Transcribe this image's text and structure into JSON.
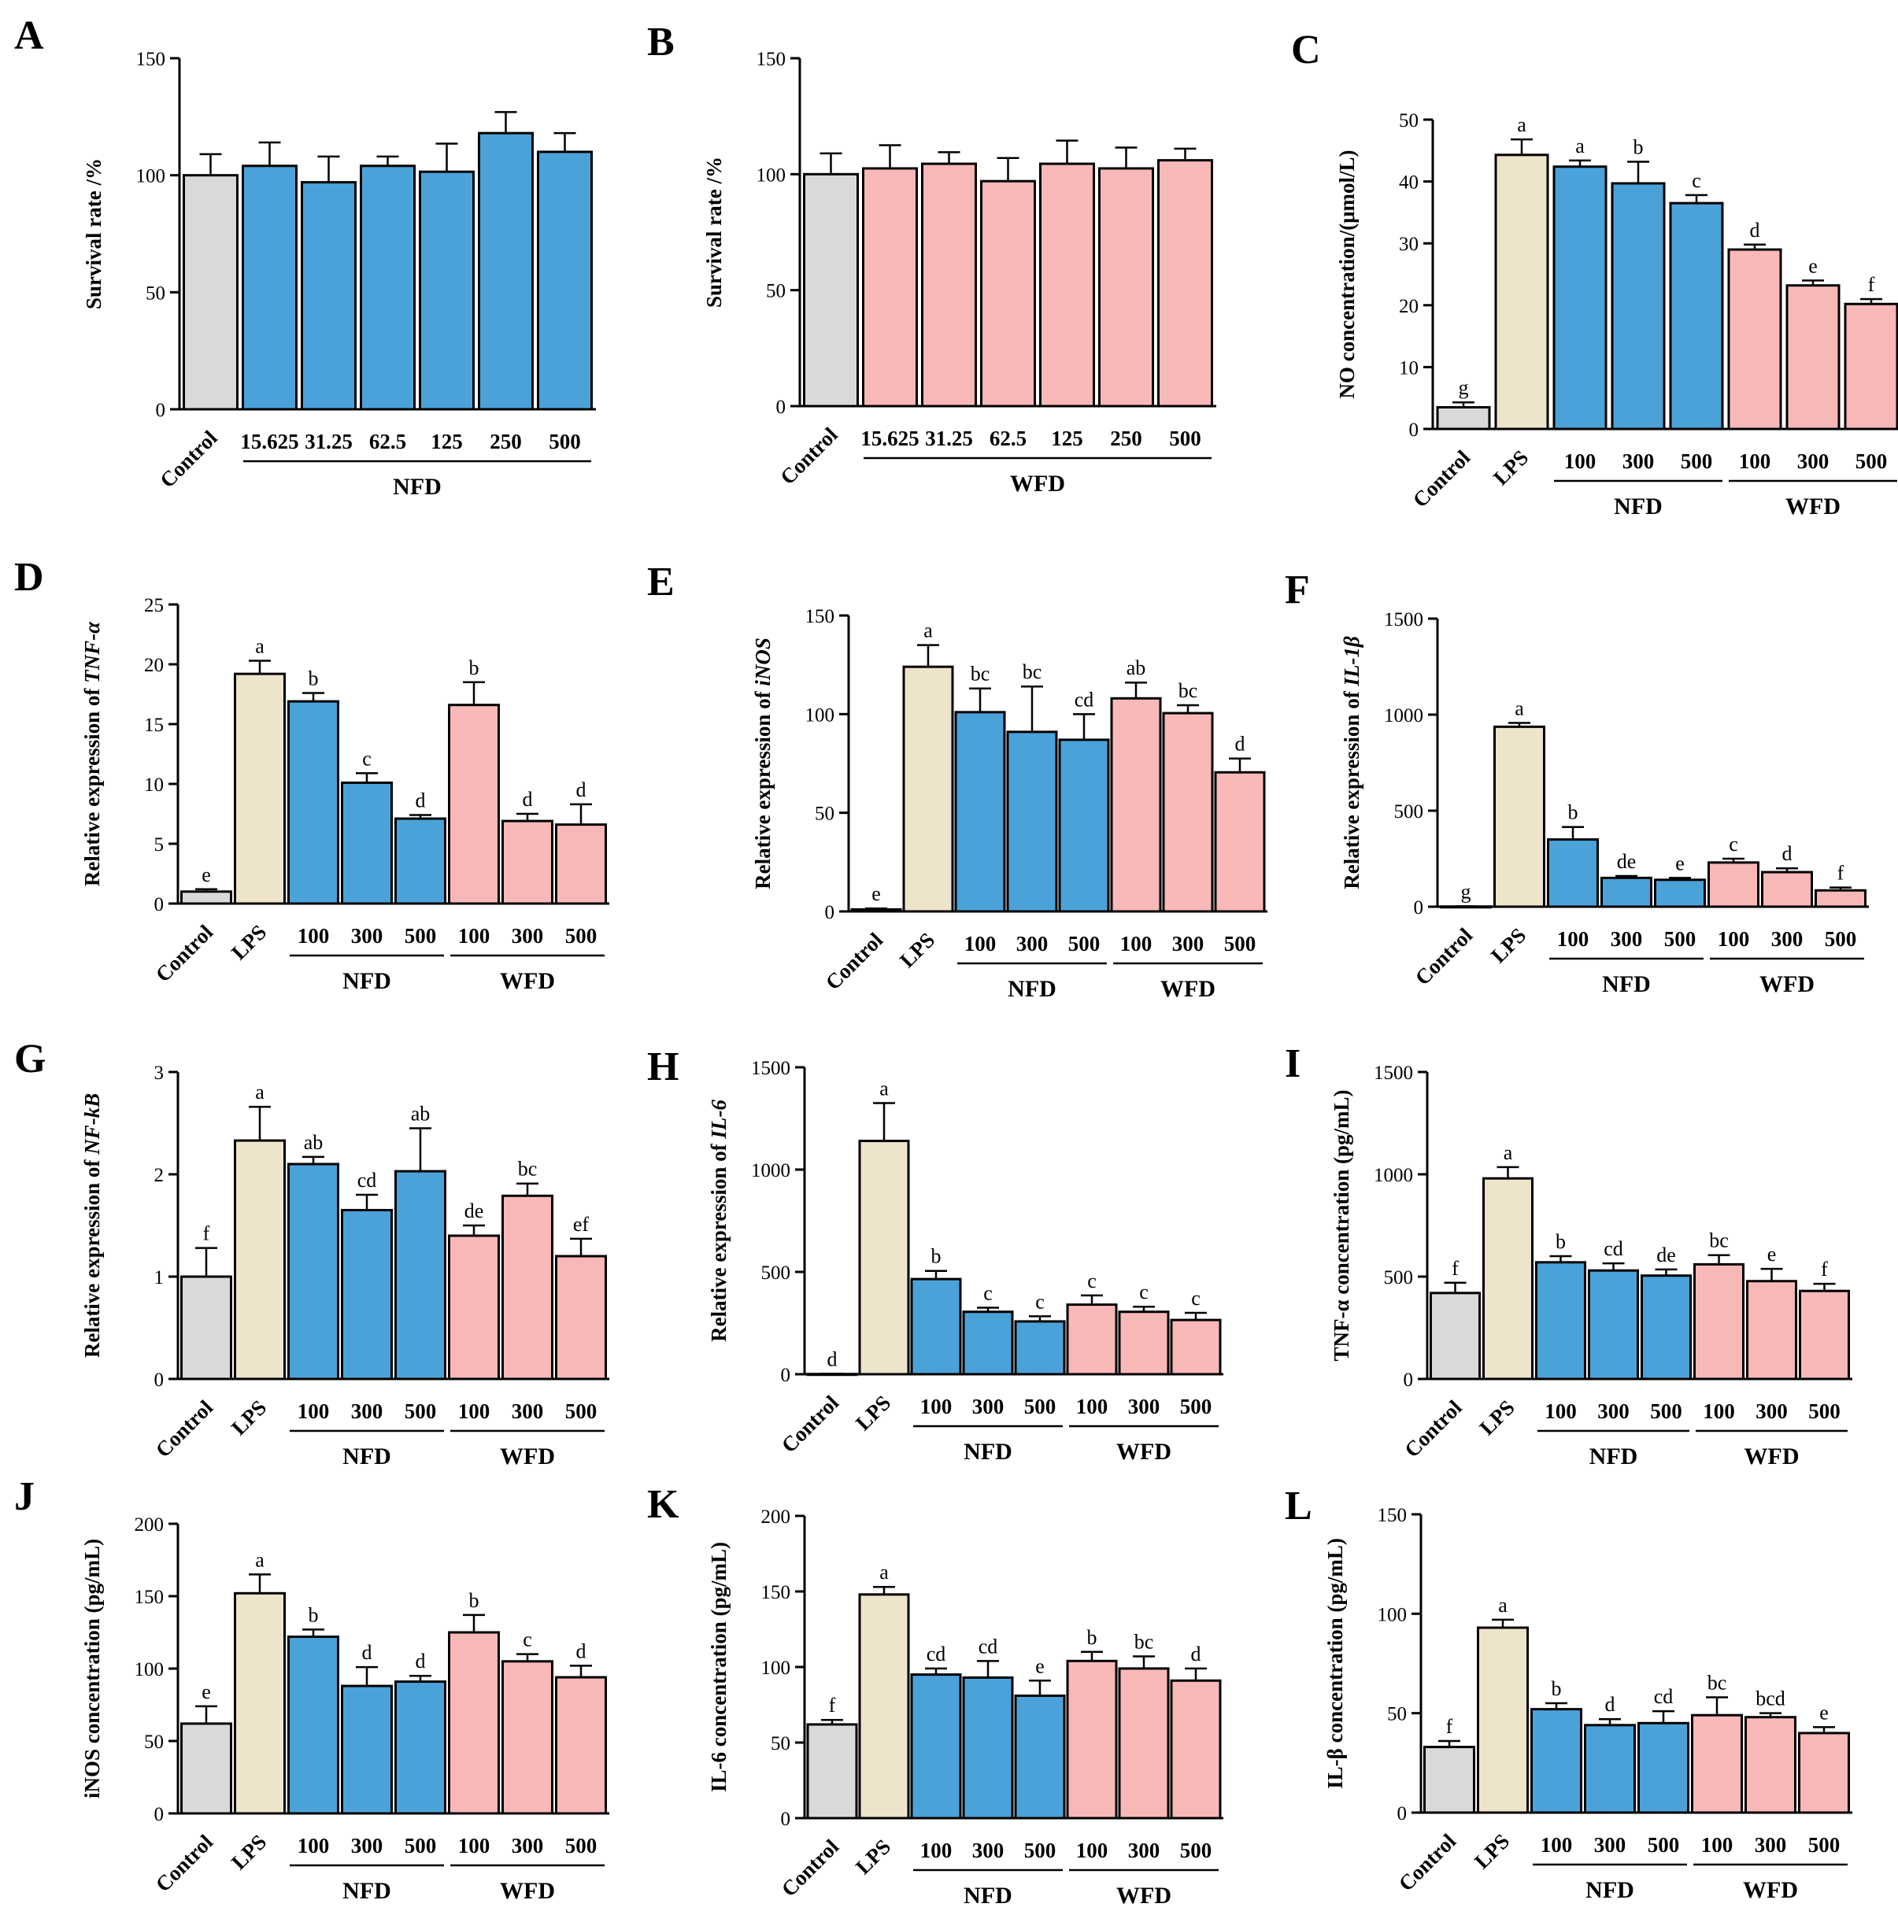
{
  "colors": {
    "Control": "#d9d9d9",
    "LPS": "#ede4c9",
    "NFD": "#4ba2d9",
    "WFD": "#f9b8b8",
    "edge": "#000000"
  },
  "chart_data": [
    {
      "type": "bar",
      "panel": "A",
      "ylabel": "Survival rate /%",
      "ylim": [
        0,
        150
      ],
      "yticks": [
        0,
        50,
        100,
        150
      ],
      "categories": [
        "Control",
        "15.625",
        "31.25",
        "62.5",
        "125",
        "250",
        "500"
      ],
      "groups": [
        "Control",
        "NFD",
        "NFD",
        "NFD",
        "NFD",
        "NFD",
        "NFD"
      ],
      "values": [
        100,
        104,
        97,
        104,
        101.5,
        118,
        110
      ],
      "errors": [
        9,
        10,
        11,
        4,
        12,
        9,
        8
      ],
      "sig": [
        "",
        "",
        "",
        "",
        "",
        "",
        ""
      ],
      "brackets": [
        {
          "label": "NFD",
          "from": 1,
          "to": 6
        }
      ]
    },
    {
      "type": "bar",
      "panel": "B",
      "ylabel": "Survival rate /%",
      "ylim": [
        0,
        150
      ],
      "yticks": [
        0,
        50,
        100,
        150
      ],
      "categories": [
        "Control",
        "15.625",
        "31.25",
        "62.5",
        "125",
        "250",
        "500"
      ],
      "groups": [
        "Control",
        "WFD",
        "WFD",
        "WFD",
        "WFD",
        "WFD",
        "WFD"
      ],
      "values": [
        100,
        102.5,
        104.5,
        97,
        104.5,
        102.5,
        106
      ],
      "errors": [
        9,
        10,
        5,
        10,
        10,
        9,
        5
      ],
      "sig": [
        "",
        "",
        "",
        "",
        "",
        "",
        ""
      ],
      "brackets": [
        {
          "label": "WFD",
          "from": 1,
          "to": 6
        }
      ]
    },
    {
      "type": "bar",
      "panel": "C",
      "ylabel": "NO concentration/(μmol/L)",
      "ylim": [
        0,
        50
      ],
      "yticks": [
        0,
        10,
        20,
        30,
        40,
        50
      ],
      "categories": [
        "Control",
        "LPS",
        "100",
        "300",
        "500",
        "100",
        "300",
        "500"
      ],
      "groups": [
        "Control",
        "LPS",
        "NFD",
        "NFD",
        "NFD",
        "WFD",
        "WFD",
        "WFD"
      ],
      "values": [
        3.5,
        44.3,
        42.4,
        39.7,
        36.5,
        29,
        23.2,
        20.2
      ],
      "errors": [
        0.8,
        2.5,
        1.0,
        3.5,
        1.3,
        0.8,
        0.8,
        0.8
      ],
      "sig": [
        "g",
        "a",
        "a",
        "b",
        "c",
        "d",
        "e",
        "f"
      ],
      "brackets": [
        {
          "label": "NFD",
          "from": 2,
          "to": 4
        },
        {
          "label": "WFD",
          "from": 5,
          "to": 7
        }
      ]
    },
    {
      "type": "bar",
      "panel": "D",
      "ylabel_prefix": "Relative expression of ",
      "ylabel_italic": "TNF-α",
      "ylim": [
        0,
        25
      ],
      "yticks": [
        0,
        5,
        10,
        15,
        20,
        25
      ],
      "categories": [
        "Control",
        "LPS",
        "100",
        "300",
        "500",
        "100",
        "300",
        "500"
      ],
      "groups": [
        "Control",
        "LPS",
        "NFD",
        "NFD",
        "NFD",
        "WFD",
        "WFD",
        "WFD"
      ],
      "values": [
        1,
        19.2,
        16.9,
        10.1,
        7.1,
        16.6,
        6.9,
        6.6
      ],
      "errors": [
        0.2,
        1.1,
        0.7,
        0.8,
        0.3,
        1.9,
        0.6,
        1.7
      ],
      "sig": [
        "e",
        "a",
        "b",
        "c",
        "d",
        "b",
        "d",
        "d"
      ],
      "brackets": [
        {
          "label": "NFD",
          "from": 2,
          "to": 4
        },
        {
          "label": "WFD",
          "from": 5,
          "to": 7
        }
      ]
    },
    {
      "type": "bar",
      "panel": "E",
      "ylabel_prefix": "Relative expression of ",
      "ylabel_italic": "iNOS",
      "ylim": [
        0,
        150
      ],
      "yticks": [
        0,
        50,
        100,
        150
      ],
      "categories": [
        "Control",
        "LPS",
        "100",
        "300",
        "500",
        "100",
        "300",
        "500"
      ],
      "groups": [
        "Control",
        "LPS",
        "NFD",
        "NFD",
        "NFD",
        "WFD",
        "WFD",
        "WFD"
      ],
      "values": [
        1,
        124,
        101,
        91,
        87,
        108,
        100.5,
        70.5
      ],
      "errors": [
        0.5,
        11,
        12,
        23,
        13,
        8,
        4,
        7
      ],
      "sig": [
        "e",
        "a",
        "bc",
        "bc",
        "cd",
        "ab",
        "bc",
        "d"
      ],
      "brackets": [
        {
          "label": "NFD",
          "from": 2,
          "to": 4
        },
        {
          "label": "WFD",
          "from": 5,
          "to": 7
        }
      ]
    },
    {
      "type": "bar",
      "panel": "F",
      "ylabel_prefix": "Relative expression of ",
      "ylabel_italic": "IL-1β",
      "ylim": [
        0,
        1500
      ],
      "yticks": [
        0,
        500,
        1000,
        1500
      ],
      "categories": [
        "Control",
        "LPS",
        "100",
        "300",
        "500",
        "100",
        "300",
        "500"
      ],
      "groups": [
        "Control",
        "LPS",
        "NFD",
        "NFD",
        "NFD",
        "WFD",
        "WFD",
        "WFD"
      ],
      "values": [
        1,
        937,
        350,
        150,
        140,
        230,
        180,
        85
      ],
      "errors": [
        1,
        20,
        65,
        10,
        10,
        20,
        20,
        15
      ],
      "sig": [
        "g",
        "a",
        "b",
        "de",
        "e",
        "c",
        "d",
        "f"
      ],
      "brackets": [
        {
          "label": "NFD",
          "from": 2,
          "to": 4
        },
        {
          "label": "WFD",
          "from": 5,
          "to": 7
        }
      ]
    },
    {
      "type": "bar",
      "panel": "G",
      "ylabel_prefix": "Relative expression of ",
      "ylabel_italic": "NF-kB",
      "ylim": [
        0,
        3
      ],
      "yticks": [
        0,
        1,
        2,
        3
      ],
      "categories": [
        "Control",
        "LPS",
        "100",
        "300",
        "500",
        "100",
        "300",
        "500"
      ],
      "groups": [
        "Control",
        "LPS",
        "NFD",
        "NFD",
        "NFD",
        "WFD",
        "WFD",
        "WFD"
      ],
      "values": [
        1,
        2.33,
        2.1,
        1.65,
        2.03,
        1.4,
        1.79,
        1.2
      ],
      "errors": [
        0.28,
        0.33,
        0.07,
        0.15,
        0.42,
        0.1,
        0.12,
        0.17
      ],
      "sig": [
        "f",
        "a",
        "ab",
        "cd",
        "ab",
        "de",
        "bc",
        "ef"
      ],
      "brackets": [
        {
          "label": "NFD",
          "from": 2,
          "to": 4
        },
        {
          "label": "WFD",
          "from": 5,
          "to": 7
        }
      ]
    },
    {
      "type": "bar",
      "panel": "H",
      "ylabel_prefix": "Relative expression of ",
      "ylabel_italic": "IL-6",
      "ylim": [
        0,
        1500
      ],
      "yticks": [
        0,
        500,
        1000,
        1500
      ],
      "categories": [
        "Control",
        "LPS",
        "100",
        "300",
        "500",
        "100",
        "300",
        "500"
      ],
      "groups": [
        "Control",
        "LPS",
        "NFD",
        "NFD",
        "NFD",
        "WFD",
        "WFD",
        "WFD"
      ],
      "values": [
        1,
        1140,
        465,
        305,
        258,
        340,
        305,
        265
      ],
      "errors": [
        1,
        185,
        40,
        20,
        25,
        45,
        25,
        35
      ],
      "sig": [
        "d",
        "a",
        "b",
        "c",
        "c",
        "c",
        "c",
        "c"
      ],
      "brackets": [
        {
          "label": "NFD",
          "from": 2,
          "to": 4
        },
        {
          "label": "WFD",
          "from": 5,
          "to": 7
        }
      ]
    },
    {
      "type": "bar",
      "panel": "I",
      "ylabel": "TNF-α concentration (pg/mL)",
      "ylim": [
        0,
        1500
      ],
      "yticks": [
        0,
        500,
        1000,
        1500
      ],
      "categories": [
        "Control",
        "LPS",
        "100",
        "300",
        "500",
        "100",
        "300",
        "500"
      ],
      "groups": [
        "Control",
        "LPS",
        "NFD",
        "NFD",
        "NFD",
        "WFD",
        "WFD",
        "WFD"
      ],
      "values": [
        420,
        980,
        570,
        530,
        505,
        560,
        478,
        430
      ],
      "errors": [
        50,
        55,
        30,
        35,
        30,
        45,
        60,
        35
      ],
      "sig": [
        "f",
        "a",
        "b",
        "cd",
        "de",
        "bc",
        "e",
        "f"
      ],
      "brackets": [
        {
          "label": "NFD",
          "from": 2,
          "to": 4
        },
        {
          "label": "WFD",
          "from": 5,
          "to": 7
        }
      ]
    },
    {
      "type": "bar",
      "panel": "J",
      "ylabel": "iNOS concentration (pg/mL)",
      "ylim": [
        0,
        200
      ],
      "yticks": [
        0,
        50,
        100,
        150,
        200
      ],
      "categories": [
        "Control",
        "LPS",
        "100",
        "300",
        "500",
        "100",
        "300",
        "500"
      ],
      "groups": [
        "Control",
        "LPS",
        "NFD",
        "NFD",
        "NFD",
        "WFD",
        "WFD",
        "WFD"
      ],
      "values": [
        62,
        152,
        122,
        88,
        91,
        125,
        105,
        94
      ],
      "errors": [
        12,
        13,
        5,
        13,
        4,
        12,
        5,
        8
      ],
      "sig": [
        "e",
        "a",
        "b",
        "d",
        "d",
        "b",
        "c",
        "d"
      ],
      "brackets": [
        {
          "label": "NFD",
          "from": 2,
          "to": 4
        },
        {
          "label": "WFD",
          "from": 5,
          "to": 7
        }
      ]
    },
    {
      "type": "bar",
      "panel": "K",
      "ylabel": "IL-6 concentration (pg/mL)",
      "ylim": [
        0,
        200
      ],
      "yticks": [
        0,
        50,
        100,
        150,
        200
      ],
      "categories": [
        "Control",
        "LPS",
        "100",
        "300",
        "500",
        "100",
        "300",
        "500"
      ],
      "groups": [
        "Control",
        "LPS",
        "NFD",
        "NFD",
        "NFD",
        "WFD",
        "WFD",
        "WFD"
      ],
      "values": [
        62,
        148,
        95,
        93,
        81,
        104,
        99,
        91
      ],
      "errors": [
        3,
        5,
        4,
        11,
        10,
        6,
        8,
        8
      ],
      "sig": [
        "f",
        "a",
        "cd",
        "cd",
        "e",
        "b",
        "bc",
        "d"
      ],
      "brackets": [
        {
          "label": "NFD",
          "from": 2,
          "to": 4
        },
        {
          "label": "WFD",
          "from": 5,
          "to": 7
        }
      ]
    },
    {
      "type": "bar",
      "panel": "L",
      "ylabel": "IL-β concentration (pg/mL)",
      "ylim": [
        0,
        150
      ],
      "yticks": [
        0,
        50,
        100,
        150
      ],
      "categories": [
        "Control",
        "LPS",
        "100",
        "300",
        "500",
        "100",
        "300",
        "500"
      ],
      "groups": [
        "Control",
        "LPS",
        "NFD",
        "NFD",
        "NFD",
        "WFD",
        "WFD",
        "WFD"
      ],
      "values": [
        33,
        93,
        52,
        44,
        45,
        49,
        48,
        40
      ],
      "errors": [
        3,
        4,
        3,
        3,
        6,
        9,
        2,
        3
      ],
      "sig": [
        "f",
        "a",
        "b",
        "d",
        "cd",
        "bc",
        "bcd",
        "e"
      ],
      "brackets": [
        {
          "label": "NFD",
          "from": 2,
          "to": 4
        },
        {
          "label": "WFD",
          "from": 5,
          "to": 7
        }
      ]
    }
  ]
}
